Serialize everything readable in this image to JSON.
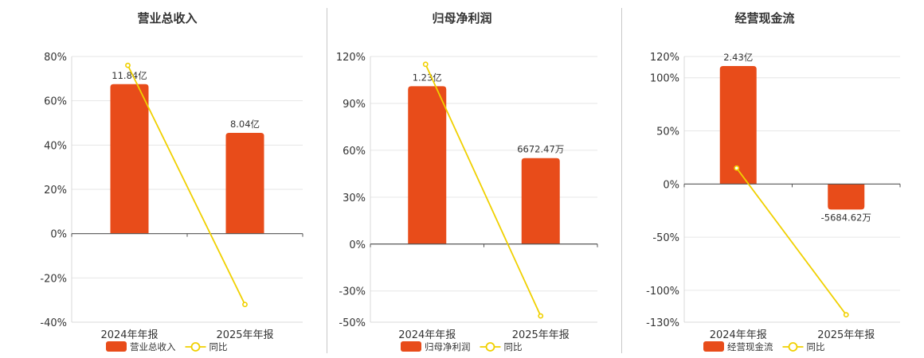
{
  "colors": {
    "bar": "#e84c1a",
    "line": "#f0d000",
    "grid": "#e6e6e6",
    "axis": "#555555"
  },
  "chart_data": [
    {
      "type": "bar",
      "title": "营业总收入",
      "categories": [
        "2024年年报",
        "2025年年报"
      ],
      "y_ticks": [
        "80%",
        "60%",
        "40%",
        "20%",
        "0%",
        "-20%",
        "-40%"
      ],
      "ylim": [
        -40,
        80
      ],
      "series": [
        {
          "name": "营业总收入",
          "kind": "bar",
          "values": [
            67.5,
            45.5
          ],
          "labels": [
            "11.84亿",
            "8.04亿"
          ]
        },
        {
          "name": "同比",
          "kind": "line",
          "values": [
            76,
            -32
          ]
        }
      ]
    },
    {
      "type": "bar",
      "title": "归母净利润",
      "categories": [
        "2024年年报",
        "2025年年报"
      ],
      "y_ticks": [
        "120%",
        "90%",
        "60%",
        "30%",
        "0%",
        "-30%",
        "-50%"
      ],
      "ylim": [
        -50,
        120
      ],
      "series": [
        {
          "name": "归母净利润",
          "kind": "bar",
          "values": [
            101,
            55
          ],
          "labels": [
            "1.23亿",
            "6672.47万"
          ]
        },
        {
          "name": "同比",
          "kind": "line",
          "values": [
            115,
            -46
          ]
        }
      ]
    },
    {
      "type": "bar",
      "title": "经营现金流",
      "categories": [
        "2024年年报",
        "2025年年报"
      ],
      "y_ticks": [
        "120%",
        "100%",
        "50%",
        "0%",
        "-50%",
        "-100%",
        "-130%"
      ],
      "ylim": [
        -130,
        120
      ],
      "series": [
        {
          "name": "经营现金流",
          "kind": "bar",
          "values": [
            111,
            -24
          ],
          "labels": [
            "2.43亿",
            "-5684.62万"
          ]
        },
        {
          "name": "同比",
          "kind": "line",
          "values": [
            15,
            -123
          ]
        }
      ]
    }
  ]
}
